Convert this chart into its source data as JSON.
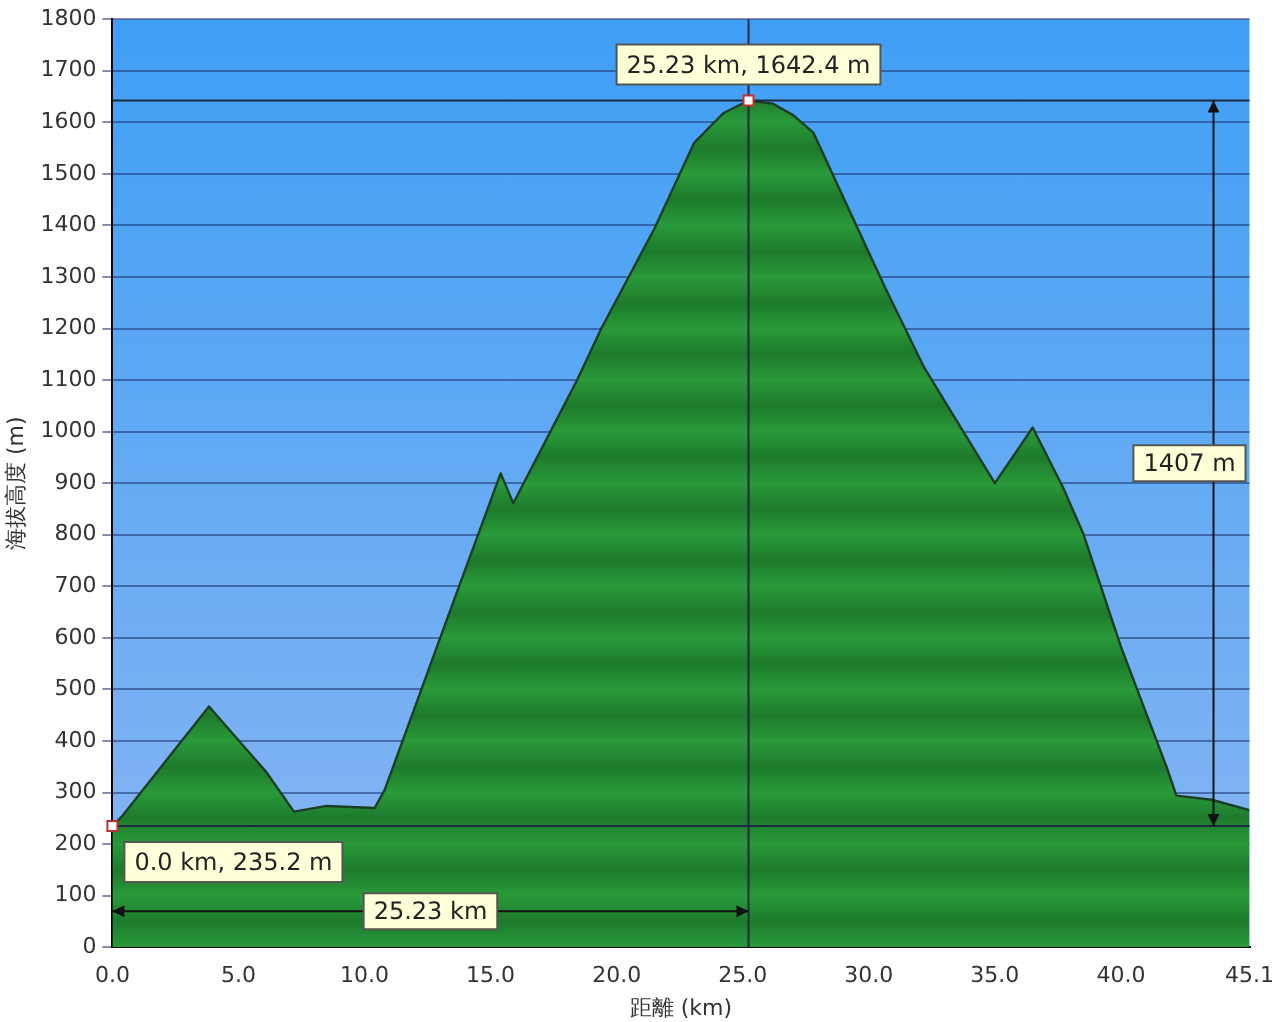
{
  "chart_data": {
    "type": "area",
    "xlabel": "距離 (km)",
    "ylabel": "海拔高度 (m)",
    "x": [
      0,
      0.4,
      3.83,
      6.1,
      7.2,
      8.5,
      10.4,
      10.8,
      13.45,
      15.4,
      15.9,
      18.4,
      19.4,
      21.5,
      23.07,
      24.24,
      25.23,
      26.2,
      27.0,
      27.8,
      30.65,
      32.2,
      33.5,
      35.0,
      36.5,
      37.7,
      38.5,
      40.0,
      41.8,
      42.2,
      43.6,
      45.1
    ],
    "series": [
      {
        "color": "#2a9a3a",
        "values": [
          235.2,
          255,
          467,
          340,
          263,
          274,
          270,
          305,
          660,
          919,
          861,
          1097,
          1201,
          1394,
          1560,
          1618,
          1642.4,
          1636,
          1614,
          1580,
          1279,
          1124,
          1020,
          900,
          1008,
          892,
          803,
          583,
          351,
          294,
          286,
          266
        ]
      }
    ],
    "xlim": [
      0,
      45.1
    ],
    "xticks": [
      {
        "value": 0,
        "label": "0.0"
      },
      {
        "value": 5,
        "label": "5.0"
      },
      {
        "value": 10,
        "label": "10.0"
      },
      {
        "value": 15,
        "label": "15.0"
      },
      {
        "value": 20,
        "label": "20.0"
      },
      {
        "value": 25,
        "label": "25.0"
      },
      {
        "value": 30,
        "label": "30.0"
      },
      {
        "value": 35,
        "label": "35.0"
      },
      {
        "value": 40,
        "label": "40.0"
      },
      {
        "value": 45.1,
        "label": "45.1"
      }
    ],
    "ylim": [
      0,
      1800
    ],
    "yticks": [
      0,
      100,
      200,
      300,
      400,
      500,
      600,
      700,
      800,
      900,
      1000,
      1100,
      1200,
      1300,
      1400,
      1500,
      1600,
      1700,
      1800
    ],
    "grid": "y",
    "legend": false,
    "marker": "none",
    "line_style": "solid",
    "ref_lines": [
      {
        "axis": "y",
        "value": 1642.4,
        "color": "#1a2a40"
      },
      {
        "axis": "y",
        "value": 235.2,
        "color": "#1a2a40"
      },
      {
        "axis": "x",
        "value": 25.23,
        "color": "#1a2a40"
      }
    ],
    "annotations": [
      {
        "text": "25.23 km, 1642.4 m",
        "x": 25.23,
        "y": 1642.4
      },
      {
        "text": "0.0 km, 235.2 m",
        "x": 0,
        "y": 235.2
      },
      "25.23 km",
      "1407 m"
    ]
  }
}
